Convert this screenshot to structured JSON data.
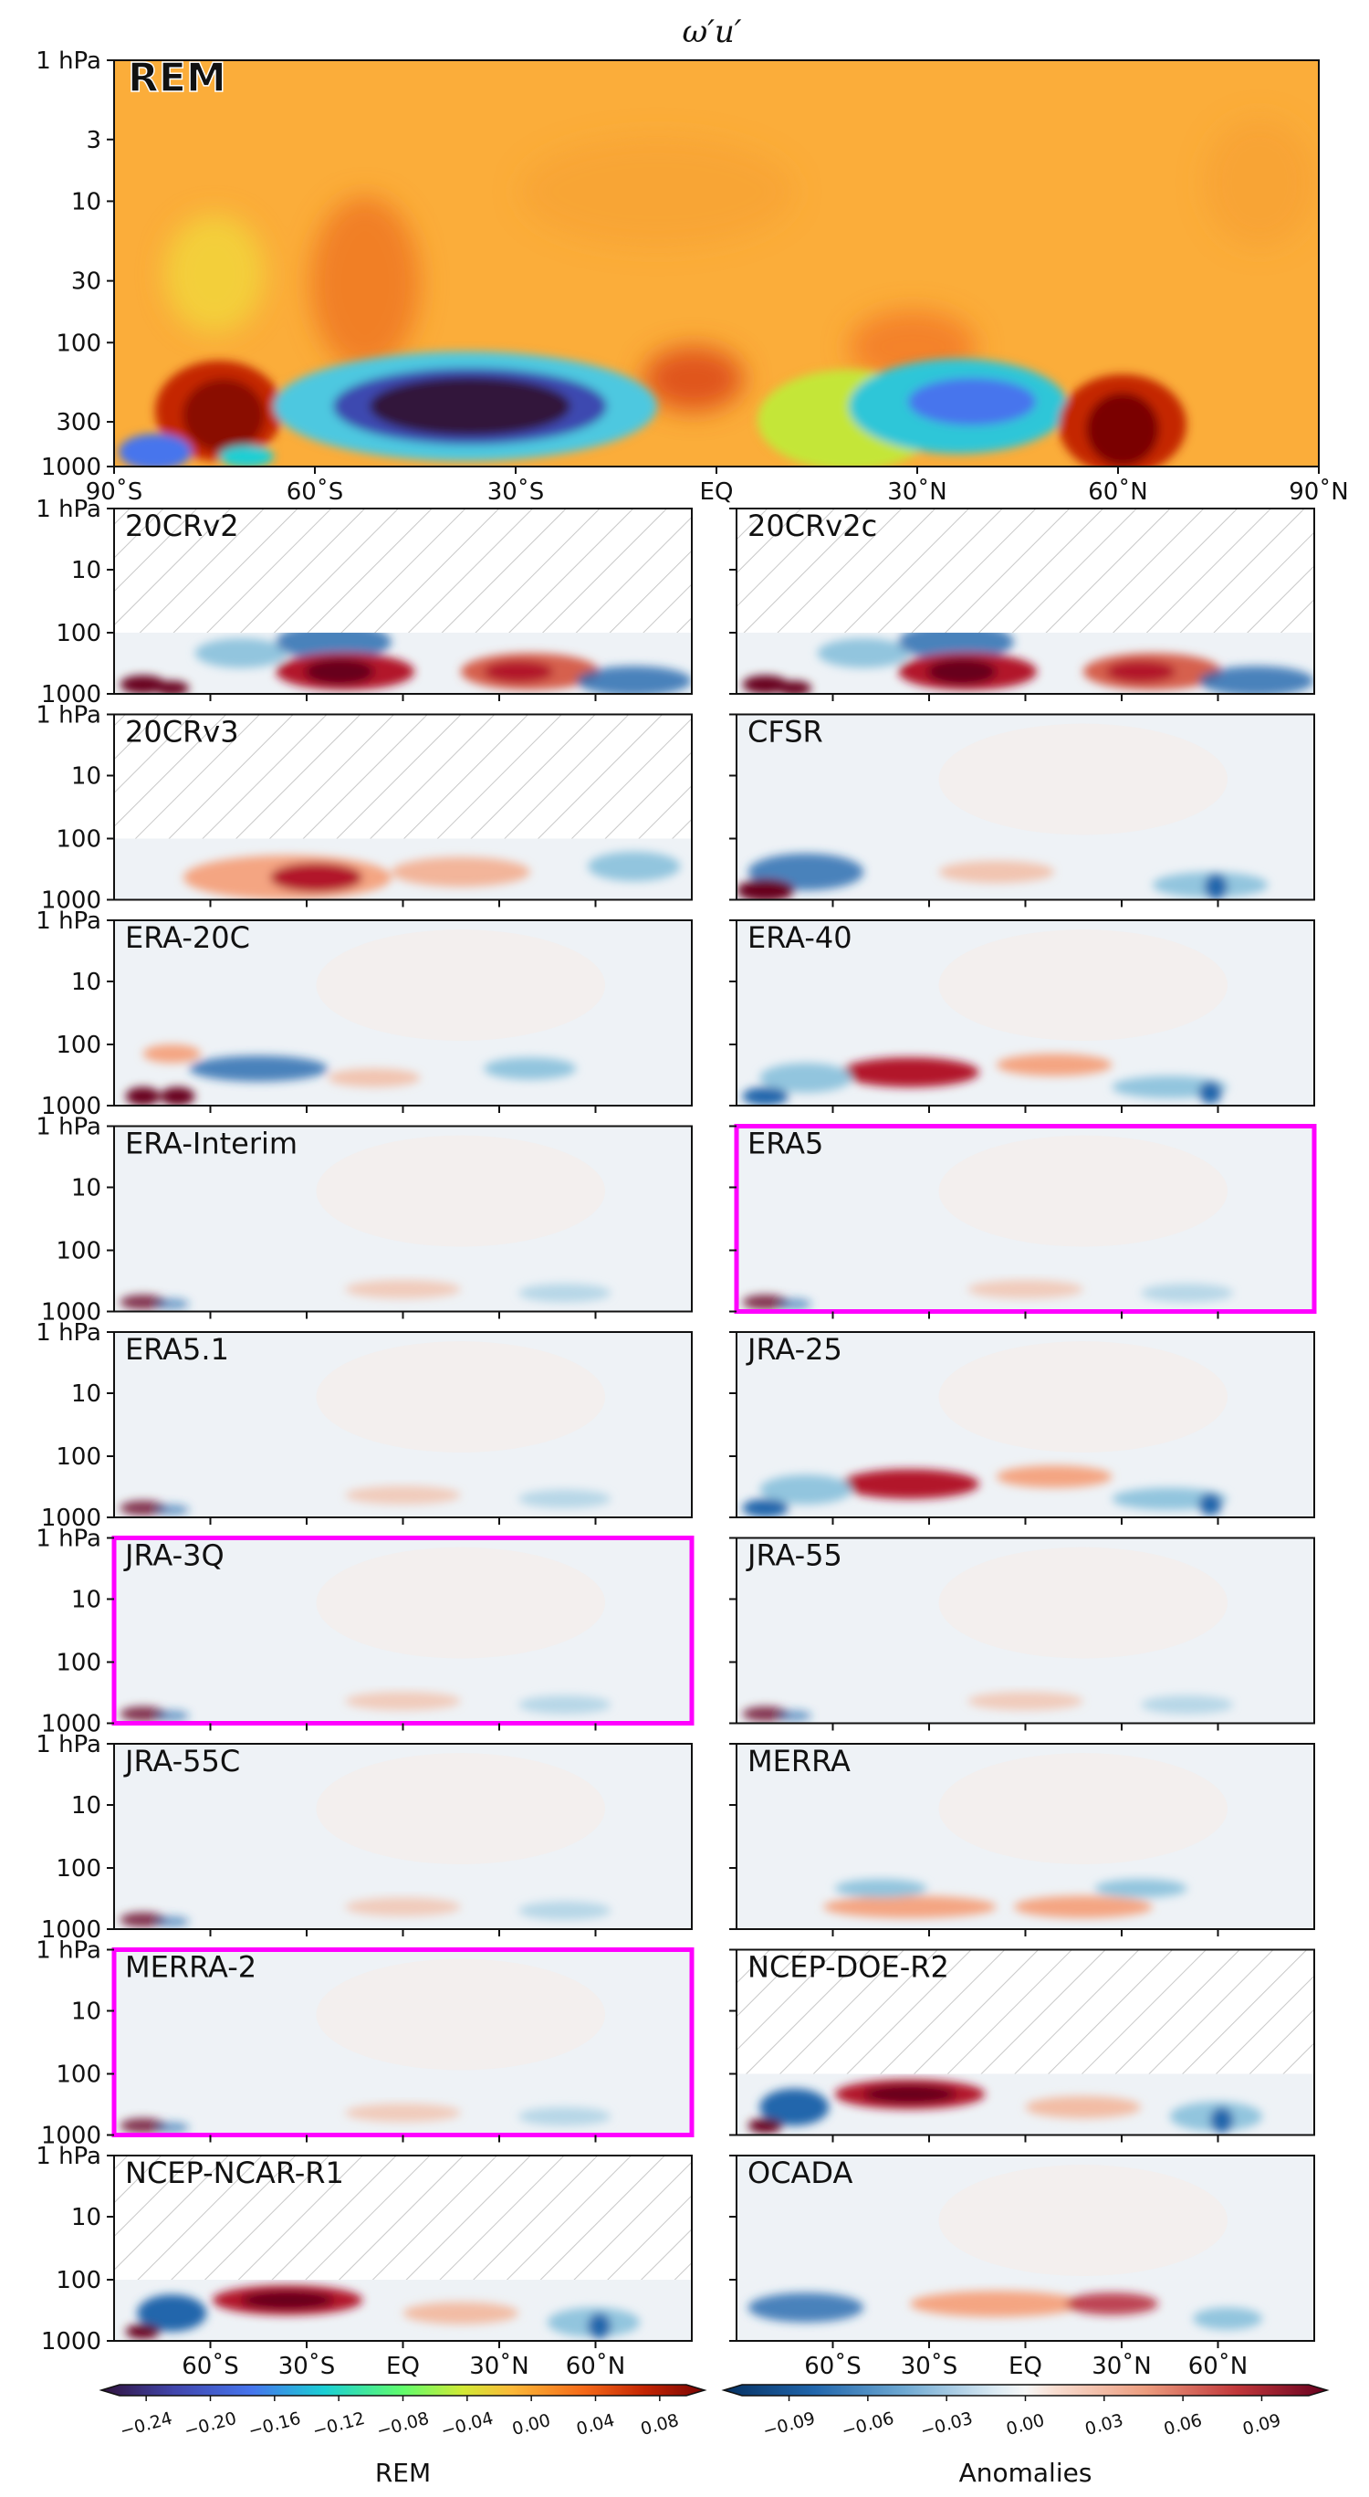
{
  "title": "ω′u′",
  "main_panel": {
    "label": "REM",
    "label_color": "#ff2cf0"
  },
  "y_ticks_main": [
    "1 hPa",
    "3",
    "10",
    "30",
    "100",
    "300",
    "1000"
  ],
  "x_ticks_main": [
    "90˚S",
    "60˚S",
    "30˚S",
    "EQ",
    "30˚N",
    "60˚N",
    "90˚N"
  ],
  "y_ticks_small": [
    "1 hPa",
    "10",
    "100",
    "1000"
  ],
  "x_ticks_bottom": [
    "60˚S",
    "30˚S",
    "EQ",
    "30˚N",
    "60˚N"
  ],
  "highlight_color": "#ff00ff",
  "panels": [
    {
      "label": "20CRv2",
      "hatched_top": true,
      "highlight": false,
      "variant": "a"
    },
    {
      "label": "20CRv2c",
      "hatched_top": true,
      "highlight": false,
      "variant": "a"
    },
    {
      "label": "20CRv3",
      "hatched_top": true,
      "highlight": false,
      "variant": "b"
    },
    {
      "label": "CFSR",
      "hatched_top": false,
      "highlight": false,
      "variant": "c"
    },
    {
      "label": "ERA-20C",
      "hatched_top": false,
      "highlight": false,
      "variant": "d"
    },
    {
      "label": "ERA-40",
      "hatched_top": false,
      "highlight": false,
      "variant": "e"
    },
    {
      "label": "ERA-Interim",
      "hatched_top": false,
      "highlight": false,
      "variant": "f"
    },
    {
      "label": "ERA5",
      "hatched_top": false,
      "highlight": true,
      "variant": "f"
    },
    {
      "label": "ERA5.1",
      "hatched_top": false,
      "highlight": false,
      "variant": "f"
    },
    {
      "label": "JRA-25",
      "hatched_top": false,
      "highlight": false,
      "variant": "e"
    },
    {
      "label": "JRA-3Q",
      "hatched_top": false,
      "highlight": true,
      "variant": "f"
    },
    {
      "label": "JRA-55",
      "hatched_top": false,
      "highlight": false,
      "variant": "f"
    },
    {
      "label": "JRA-55C",
      "hatched_top": false,
      "highlight": false,
      "variant": "f"
    },
    {
      "label": "MERRA",
      "hatched_top": false,
      "highlight": false,
      "variant": "g"
    },
    {
      "label": "MERRA-2",
      "hatched_top": false,
      "highlight": true,
      "variant": "f"
    },
    {
      "label": "NCEP-DOE-R2",
      "hatched_top": true,
      "highlight": false,
      "variant": "h"
    },
    {
      "label": "NCEP-NCAR-R1",
      "hatched_top": true,
      "highlight": false,
      "variant": "h"
    },
    {
      "label": "OCADA",
      "hatched_top": false,
      "highlight": false,
      "variant": "i"
    }
  ],
  "colorbars": [
    {
      "label": "REM",
      "ticks": [
        "−0.24",
        "−0.20",
        "−0.16",
        "−0.12",
        "−0.08",
        "−0.04",
        "0.00",
        "0.04",
        "0.08"
      ]
    },
    {
      "label": "Anomalies",
      "ticks": [
        "−0.09",
        "−0.06",
        "−0.03",
        "0.00",
        "0.03",
        "0.06",
        "0.09"
      ]
    }
  ],
  "chart_data": {
    "type": "heatmap",
    "title": "ω′u′",
    "x_axis": {
      "ticks": [
        "90˚S",
        "60˚S",
        "30˚S",
        "EQ",
        "30˚N",
        "60˚N",
        "90˚N"
      ],
      "range": [
        -90,
        90
      ]
    },
    "y_axis": {
      "ticks": [
        "1 hPa",
        "3",
        "10",
        "30",
        "100",
        "300",
        "1000"
      ],
      "log_scale": true,
      "inverted": true
    },
    "colorbar_rem": {
      "range": [
        -0.26,
        0.1
      ],
      "label": "REM"
    },
    "colorbar_anomalies": {
      "range": [
        -0.11,
        0.11
      ],
      "label": "Anomalies"
    },
    "panels": [
      "REM",
      "20CRv2",
      "20CRv2c",
      "20CRv3",
      "CFSR",
      "ERA-20C",
      "ERA-40",
      "ERA-Interim",
      "ERA5",
      "ERA5.1",
      "JRA-25",
      "JRA-3Q",
      "JRA-55",
      "JRA-55C",
      "MERRA",
      "MERRA-2",
      "NCEP-DOE-R2",
      "NCEP-NCAR-R1",
      "OCADA"
    ]
  }
}
